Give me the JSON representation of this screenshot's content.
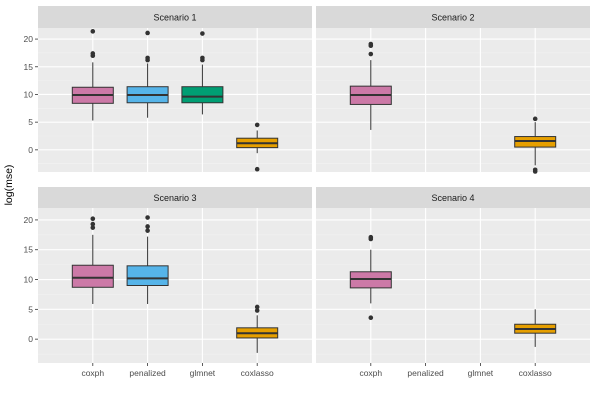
{
  "chart_data": {
    "type": "boxplot",
    "ylabel": "log(mse)",
    "xlabel": "",
    "ylim": [
      -4,
      22
    ],
    "yticks": [
      0,
      5,
      10,
      15,
      20
    ],
    "categories": [
      "coxph",
      "penalized",
      "glmnet",
      "coxlasso"
    ],
    "colors": {
      "coxph": "#cc79a7",
      "penalized": "#56b4e9",
      "glmnet": "#009e73",
      "coxlasso": "#e69f00",
      "panel_bg": "#ebebeb",
      "strip_bg": "#d9d9d9",
      "grid_major": "#ffffff",
      "grid_minor": "#f2f2f2"
    },
    "panels": [
      {
        "title": "Scenario 1",
        "boxes": [
          {
            "category": "coxph",
            "whisker_low": 5.3,
            "q1": 8.4,
            "median": 9.9,
            "q3": 11.3,
            "whisker_high": 15.8,
            "outliers": [
              17.0,
              17.4,
              21.4
            ]
          },
          {
            "category": "penalized",
            "whisker_low": 5.8,
            "q1": 8.5,
            "median": 9.9,
            "q3": 11.4,
            "whisker_high": 15.6,
            "outliers": [
              16.2,
              16.6,
              21.1
            ]
          },
          {
            "category": "glmnet",
            "whisker_low": 6.4,
            "q1": 8.5,
            "median": 9.6,
            "q3": 11.4,
            "whisker_high": 15.4,
            "outliers": [
              16.2,
              16.6,
              21.0
            ]
          },
          {
            "category": "coxlasso",
            "whisker_low": -0.6,
            "q1": 0.4,
            "median": 1.2,
            "q3": 2.1,
            "whisker_high": 3.5,
            "outliers": [
              4.5,
              -3.5
            ]
          }
        ]
      },
      {
        "title": "Scenario 2",
        "boxes": [
          {
            "category": "coxph",
            "whisker_low": 3.6,
            "q1": 8.2,
            "median": 9.9,
            "q3": 11.5,
            "whisker_high": 16.2,
            "outliers": [
              17.3,
              18.8,
              19.1
            ]
          },
          {
            "category": "coxlasso",
            "whisker_low": -2.8,
            "q1": 0.5,
            "median": 1.6,
            "q3": 2.4,
            "whisker_high": 5.0,
            "outliers": [
              5.6,
              -3.6,
              -3.9
            ]
          }
        ]
      },
      {
        "title": "Scenario 3",
        "boxes": [
          {
            "category": "coxph",
            "whisker_low": 5.9,
            "q1": 8.7,
            "median": 10.3,
            "q3": 12.4,
            "whisker_high": 17.5,
            "outliers": [
              18.7,
              19.3,
              20.2
            ]
          },
          {
            "category": "penalized",
            "whisker_low": 5.9,
            "q1": 9.0,
            "median": 10.2,
            "q3": 12.3,
            "whisker_high": 17.2,
            "outliers": [
              18.2,
              18.9,
              20.4
            ]
          },
          {
            "category": "coxlasso",
            "whisker_low": -2.3,
            "q1": 0.2,
            "median": 1.0,
            "q3": 1.9,
            "whisker_high": 4.0,
            "outliers": [
              4.8,
              5.4
            ]
          }
        ]
      },
      {
        "title": "Scenario 4",
        "boxes": [
          {
            "category": "coxph",
            "whisker_low": 6.0,
            "q1": 8.6,
            "median": 10.1,
            "q3": 11.3,
            "whisker_high": 15.0,
            "outliers": [
              16.8,
              17.1,
              3.6
            ]
          },
          {
            "category": "coxlasso",
            "whisker_low": -1.3,
            "q1": 1.0,
            "median": 1.7,
            "q3": 2.5,
            "whisker_high": 5.0,
            "outliers": []
          }
        ]
      }
    ]
  }
}
